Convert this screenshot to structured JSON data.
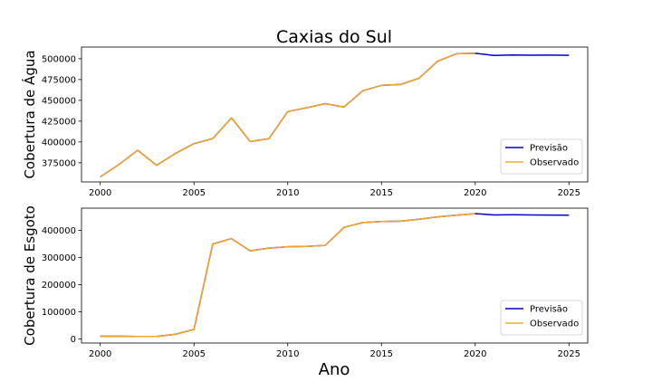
{
  "figure": {
    "title": "Caxias do Sul",
    "xlabel": "Ano"
  },
  "colors": {
    "forecast": "#0000cc",
    "observed": "#f5a623"
  },
  "chart_data": [
    {
      "type": "line",
      "title": "Caxias do Sul",
      "ylabel": "Cobertura de Água",
      "xlabel": "",
      "xlim": [
        1999,
        2026
      ],
      "ylim": [
        352000,
        514000
      ],
      "xticks": [
        2000,
        2005,
        2010,
        2015,
        2020,
        2025
      ],
      "yticks": [
        375000,
        400000,
        425000,
        450000,
        475000,
        500000
      ],
      "yticklabels": [
        "375000",
        "400000",
        "425000",
        "450000",
        "475000",
        "500000"
      ],
      "legend": "lower-right",
      "series": [
        {
          "name": "Previsão",
          "x": [
            2000,
            2001,
            2002,
            2003,
            2004,
            2005,
            2006,
            2007,
            2008,
            2009,
            2010,
            2011,
            2012,
            2013,
            2014,
            2015,
            2016,
            2017,
            2018,
            2019,
            2020,
            2021,
            2022,
            2023,
            2024,
            2025
          ],
          "y": [
            358000,
            373000,
            390000,
            372000,
            386000,
            398000,
            404000,
            429000,
            400500,
            404000,
            436500,
            441000,
            446000,
            442000,
            461500,
            468000,
            469000,
            476500,
            497000,
            506000,
            506500,
            504000,
            504500,
            504200,
            504300,
            504100
          ]
        },
        {
          "name": "Observado",
          "x": [
            2000,
            2001,
            2002,
            2003,
            2004,
            2005,
            2006,
            2007,
            2008,
            2009,
            2010,
            2011,
            2012,
            2013,
            2014,
            2015,
            2016,
            2017,
            2018,
            2019,
            2020
          ],
          "y": [
            358000,
            373000,
            390000,
            372000,
            386000,
            398000,
            404000,
            429000,
            400500,
            404000,
            436500,
            441000,
            446000,
            442000,
            461500,
            468000,
            469000,
            476500,
            497000,
            506000,
            506500
          ]
        }
      ]
    },
    {
      "type": "line",
      "title": "",
      "ylabel": "Cobertura de Esgoto",
      "xlabel": "Ano",
      "xlim": [
        1999,
        2026
      ],
      "ylim": [
        -15000,
        482000
      ],
      "xticks": [
        2000,
        2005,
        2010,
        2015,
        2020,
        2025
      ],
      "yticks": [
        0,
        100000,
        200000,
        300000,
        400000
      ],
      "yticklabels": [
        "0",
        "100000",
        "200000",
        "300000",
        "400000"
      ],
      "legend": "lower-right",
      "series": [
        {
          "name": "Previsão",
          "x": [
            2000,
            2001,
            2002,
            2003,
            2004,
            2005,
            2006,
            2007,
            2008,
            2009,
            2010,
            2011,
            2012,
            2013,
            2014,
            2015,
            2016,
            2017,
            2018,
            2019,
            2020,
            2021,
            2022,
            2023,
            2024,
            2025
          ],
          "y": [
            10000,
            10000,
            9000,
            9000,
            17000,
            35000,
            350000,
            370000,
            325000,
            335000,
            340000,
            341000,
            345000,
            411000,
            429000,
            433000,
            434000,
            441000,
            450000,
            456000,
            462000,
            457000,
            457500,
            457000,
            456500,
            456000
          ]
        },
        {
          "name": "Observado",
          "x": [
            2000,
            2001,
            2002,
            2003,
            2004,
            2005,
            2006,
            2007,
            2008,
            2009,
            2010,
            2011,
            2012,
            2013,
            2014,
            2015,
            2016,
            2017,
            2018,
            2019,
            2020
          ],
          "y": [
            10000,
            10000,
            9000,
            9000,
            17000,
            35000,
            350000,
            370000,
            325000,
            335000,
            340000,
            341000,
            345000,
            411000,
            429000,
            433000,
            434000,
            441000,
            450000,
            456000,
            462000
          ]
        }
      ]
    }
  ]
}
